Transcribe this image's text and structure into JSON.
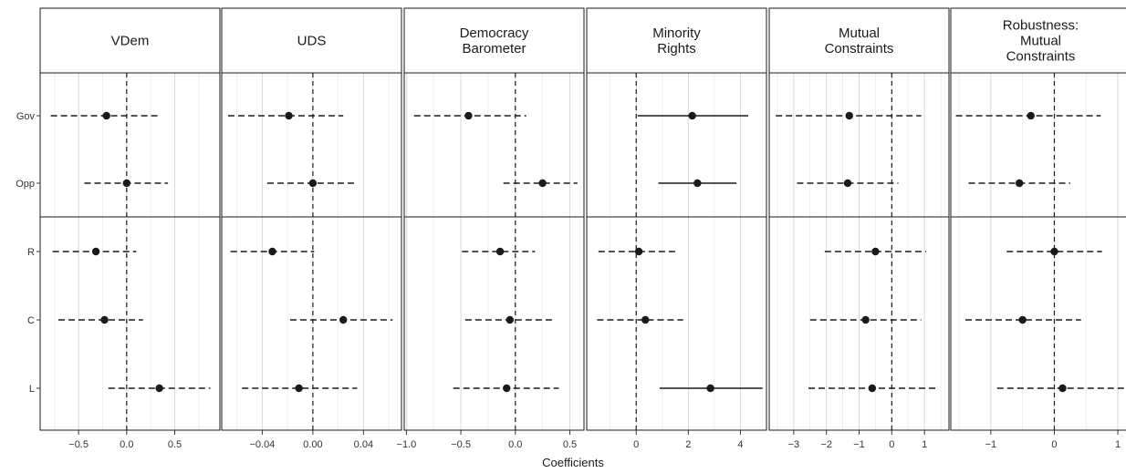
{
  "figure": {
    "xlabel": "Coefficients"
  },
  "chart_data": [
    {
      "type": "scatter",
      "title": "VDem",
      "title_lines": [
        "VDem"
      ],
      "xlabel": "Coefficients",
      "xlim": [
        -0.9,
        0.97
      ],
      "xticks": [
        -0.5,
        0.0,
        0.5
      ],
      "xtick_labels": [
        "−0.5",
        "0.0",
        "0.5"
      ],
      "minor_xticks": [
        -0.75,
        -0.25,
        0.25,
        0.75
      ],
      "rows": [
        "Gov",
        "Opp",
        "R",
        "C",
        "L"
      ],
      "grid": true,
      "points": [
        {
          "label": "Gov",
          "estimate": -0.21,
          "lower": -0.79,
          "upper": 0.33,
          "significant": false
        },
        {
          "label": "Opp",
          "estimate": 0.0,
          "lower": -0.44,
          "upper": 0.43,
          "significant": false
        },
        {
          "label": "R",
          "estimate": -0.32,
          "lower": -0.77,
          "upper": 0.1,
          "significant": false
        },
        {
          "label": "C",
          "estimate": -0.23,
          "lower": -0.71,
          "upper": 0.17,
          "significant": false
        },
        {
          "label": "L",
          "estimate": 0.34,
          "lower": -0.19,
          "upper": 0.87,
          "significant": false
        }
      ]
    },
    {
      "type": "scatter",
      "title": "UDS",
      "title_lines": [
        "UDS"
      ],
      "xlabel": "Coefficients",
      "xlim": [
        -0.072,
        0.07
      ],
      "xticks": [
        -0.04,
        0.0,
        0.04
      ],
      "xtick_labels": [
        "−0.04",
        "0.00",
        "0.04"
      ],
      "minor_xticks": [
        -0.06,
        -0.02,
        0.02,
        0.06
      ],
      "rows": [
        "Gov",
        "Opp",
        "R",
        "C",
        "L"
      ],
      "grid": true,
      "points": [
        {
          "label": "Gov",
          "estimate": -0.019,
          "lower": -0.067,
          "upper": 0.024,
          "significant": false
        },
        {
          "label": "Opp",
          "estimate": 0.0,
          "lower": -0.036,
          "upper": 0.035,
          "significant": false
        },
        {
          "label": "R",
          "estimate": -0.032,
          "lower": -0.065,
          "upper": 0.001,
          "significant": false
        },
        {
          "label": "C",
          "estimate": 0.024,
          "lower": -0.018,
          "upper": 0.063,
          "significant": false
        },
        {
          "label": "L",
          "estimate": -0.011,
          "lower": -0.056,
          "upper": 0.035,
          "significant": false
        }
      ]
    },
    {
      "type": "scatter",
      "title": "Democracy Barometer",
      "title_lines": [
        "Democracy",
        "Barometer"
      ],
      "xlabel": "Coefficients",
      "xlim": [
        -1.02,
        0.63
      ],
      "xticks": [
        -1.0,
        -0.5,
        0.0,
        0.5
      ],
      "xtick_labels": [
        "−1.0",
        "−0.5",
        "0.0",
        "0.5"
      ],
      "minor_xticks": [
        -0.75,
        -0.25,
        0.25
      ],
      "rows": [
        "Gov",
        "Opp",
        "R",
        "C",
        "L"
      ],
      "grid": true,
      "points": [
        {
          "label": "Gov",
          "estimate": -0.43,
          "lower": -0.93,
          "upper": 0.1,
          "significant": false
        },
        {
          "label": "Opp",
          "estimate": 0.25,
          "lower": -0.11,
          "upper": 0.57,
          "significant": false
        },
        {
          "label": "R",
          "estimate": -0.14,
          "lower": -0.49,
          "upper": 0.18,
          "significant": false
        },
        {
          "label": "C",
          "estimate": -0.05,
          "lower": -0.46,
          "upper": 0.35,
          "significant": false
        },
        {
          "label": "L",
          "estimate": -0.08,
          "lower": -0.57,
          "upper": 0.4,
          "significant": false
        }
      ]
    },
    {
      "type": "scatter",
      "title": "Minority Rights",
      "title_lines": [
        "Minority",
        "Rights"
      ],
      "xlabel": "Coefficients",
      "xlim": [
        -1.9,
        5.0
      ],
      "xticks": [
        0,
        2,
        4
      ],
      "xtick_labels": [
        "0",
        "2",
        "4"
      ],
      "minor_xticks": [
        -1,
        1,
        3
      ],
      "rows": [
        "Gov",
        "Opp",
        "R",
        "C",
        "L"
      ],
      "grid": true,
      "points": [
        {
          "label": "Gov",
          "estimate": 2.15,
          "lower": 0.05,
          "upper": 4.3,
          "significant": true
        },
        {
          "label": "Opp",
          "estimate": 2.35,
          "lower": 0.85,
          "upper": 3.85,
          "significant": true
        },
        {
          "label": "R",
          "estimate": 0.1,
          "lower": -1.45,
          "upper": 1.6,
          "significant": false
        },
        {
          "label": "C",
          "estimate": 0.35,
          "lower": -1.5,
          "upper": 1.8,
          "significant": false
        },
        {
          "label": "L",
          "estimate": 2.85,
          "lower": 0.9,
          "upper": 4.85,
          "significant": true
        }
      ]
    },
    {
      "type": "scatter",
      "title": "Mutual Constraints",
      "title_lines": [
        "Mutual",
        "Constraints"
      ],
      "xlabel": "Coefficients",
      "xlim": [
        -3.75,
        1.75
      ],
      "xticks": [
        -3,
        -2,
        -1,
        0,
        1
      ],
      "xtick_labels": [
        "−3",
        "−2",
        "−1",
        "0",
        "1"
      ],
      "minor_xticks": [
        -3.5,
        -2.5,
        -1.5,
        -0.5,
        0.5,
        1.5
      ],
      "rows": [
        "Gov",
        "Opp",
        "R",
        "C",
        "L"
      ],
      "grid": true,
      "points": [
        {
          "label": "Gov",
          "estimate": -1.3,
          "lower": -3.55,
          "upper": 0.9,
          "significant": false
        },
        {
          "label": "Opp",
          "estimate": -1.35,
          "lower": -2.9,
          "upper": 0.2,
          "significant": false
        },
        {
          "label": "R",
          "estimate": -0.5,
          "lower": -2.05,
          "upper": 1.05,
          "significant": false
        },
        {
          "label": "C",
          "estimate": -0.8,
          "lower": -2.5,
          "upper": 0.9,
          "significant": false
        },
        {
          "label": "L",
          "estimate": -0.6,
          "lower": -2.55,
          "upper": 1.35,
          "significant": false
        }
      ]
    },
    {
      "type": "scatter",
      "title": "Robustness: Mutual Constraints",
      "title_lines": [
        "Robustness:",
        "Mutual",
        "Constraints"
      ],
      "xlabel": "Coefficients",
      "xlim": [
        -1.63,
        1.2
      ],
      "xticks": [
        -1,
        0,
        1
      ],
      "xtick_labels": [
        "−1",
        "0",
        "1"
      ],
      "minor_xticks": [
        -1.5,
        -0.5,
        0.5
      ],
      "rows": [
        "Gov",
        "Opp",
        "R",
        "C",
        "L"
      ],
      "grid": true,
      "points": [
        {
          "label": "Gov",
          "estimate": -0.37,
          "lower": -1.55,
          "upper": 0.73,
          "significant": false
        },
        {
          "label": "Opp",
          "estimate": -0.55,
          "lower": -1.35,
          "upper": 0.25,
          "significant": false
        },
        {
          "label": "R",
          "estimate": 0.0,
          "lower": -0.75,
          "upper": 0.75,
          "significant": false
        },
        {
          "label": "C",
          "estimate": -0.5,
          "lower": -1.4,
          "upper": 0.42,
          "significant": false
        },
        {
          "label": "L",
          "estimate": 0.13,
          "lower": -0.9,
          "upper": 1.2,
          "significant": false
        }
      ]
    }
  ]
}
